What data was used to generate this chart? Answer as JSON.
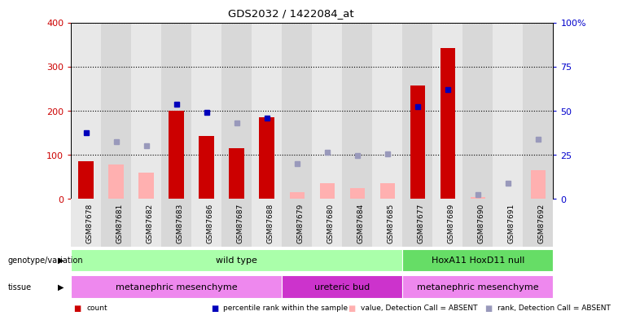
{
  "title": "GDS2032 / 1422084_at",
  "samples": [
    "GSM87678",
    "GSM87681",
    "GSM87682",
    "GSM87683",
    "GSM87686",
    "GSM87687",
    "GSM87688",
    "GSM87679",
    "GSM87680",
    "GSM87684",
    "GSM87685",
    "GSM87677",
    "GSM87689",
    "GSM87690",
    "GSM87691",
    "GSM87692"
  ],
  "count": [
    85,
    0,
    0,
    200,
    143,
    115,
    185,
    0,
    0,
    0,
    0,
    258,
    342,
    0,
    0,
    0
  ],
  "count_absent": [
    0,
    78,
    60,
    0,
    0,
    0,
    0,
    15,
    35,
    25,
    35,
    0,
    0,
    5,
    0,
    65
  ],
  "rank_present": [
    150,
    0,
    0,
    215,
    197,
    0,
    183,
    0,
    0,
    0,
    0,
    210,
    248,
    0,
    0,
    0
  ],
  "rank_absent": [
    0,
    130,
    120,
    0,
    0,
    173,
    0,
    80,
    105,
    98,
    103,
    0,
    0,
    10,
    35,
    135
  ],
  "ylim_left": [
    0,
    400
  ],
  "ylim_right": [
    0,
    100
  ],
  "yticks_left": [
    0,
    100,
    200,
    300,
    400
  ],
  "yticks_right": [
    0,
    25,
    50,
    75,
    100
  ],
  "ytick_right_labels": [
    "0",
    "25",
    "50",
    "75",
    "100%"
  ],
  "left_tick_color": "#cc0000",
  "right_tick_color": "#0000cc",
  "bar_red": "#cc0000",
  "bar_pink": "#ffb0b0",
  "square_blue": "#0000bb",
  "square_lavender": "#9999bb",
  "col_bg_even": "#e8e8e8",
  "col_bg_odd": "#d8d8d8",
  "genotype_row": [
    {
      "label": "wild type",
      "start": 0,
      "end": 10,
      "color": "#aaffaa"
    },
    {
      "label": "HoxA11 HoxD11 null",
      "start": 11,
      "end": 15,
      "color": "#66dd66"
    }
  ],
  "tissue_row": [
    {
      "label": "metanephric mesenchyme",
      "start": 0,
      "end": 6,
      "color": "#ee88ee"
    },
    {
      "label": "ureteric bud",
      "start": 7,
      "end": 10,
      "color": "#cc33cc"
    },
    {
      "label": "metanephric mesenchyme",
      "start": 11,
      "end": 15,
      "color": "#ee88ee"
    }
  ],
  "legend_items": [
    {
      "color": "#cc0000",
      "label": "count"
    },
    {
      "color": "#0000bb",
      "label": "percentile rank within the sample"
    },
    {
      "color": "#ffb0b0",
      "label": "value, Detection Call = ABSENT"
    },
    {
      "color": "#9999bb",
      "label": "rank, Detection Call = ABSENT"
    }
  ]
}
